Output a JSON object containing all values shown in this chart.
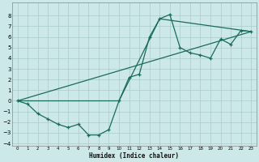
{
  "title": "",
  "xlabel": "Humidex (Indice chaleur)",
  "bg_color": "#cce8e8",
  "grid_color": "#aacccc",
  "line_color": "#1a6b5a",
  "xlim": [
    -0.5,
    23.5
  ],
  "ylim": [
    -4.2,
    9.2
  ],
  "xticks": [
    0,
    1,
    2,
    3,
    4,
    5,
    6,
    7,
    8,
    9,
    10,
    11,
    12,
    13,
    14,
    15,
    16,
    17,
    18,
    19,
    20,
    21,
    22,
    23
  ],
  "yticks": [
    -4,
    -3,
    -2,
    -1,
    0,
    1,
    2,
    3,
    4,
    5,
    6,
    7,
    8
  ],
  "line1_x": [
    0,
    1,
    2,
    3,
    4,
    5,
    6,
    7,
    8,
    9,
    10,
    11,
    12,
    13,
    14,
    15,
    16,
    17,
    18,
    19,
    20,
    21,
    22,
    23
  ],
  "line1_y": [
    0.0,
    -0.3,
    -1.2,
    -1.7,
    -2.2,
    -2.5,
    -2.2,
    -3.2,
    -3.2,
    -2.7,
    0.0,
    2.2,
    2.5,
    6.0,
    7.7,
    8.1,
    5.0,
    4.5,
    4.3,
    4.0,
    5.8,
    5.3,
    6.6,
    6.5
  ],
  "line2_x": [
    0,
    23
  ],
  "line2_y": [
    0.0,
    6.5
  ],
  "line3_x": [
    0,
    10,
    14,
    23
  ],
  "line3_y": [
    0.0,
    0.0,
    7.7,
    6.5
  ]
}
